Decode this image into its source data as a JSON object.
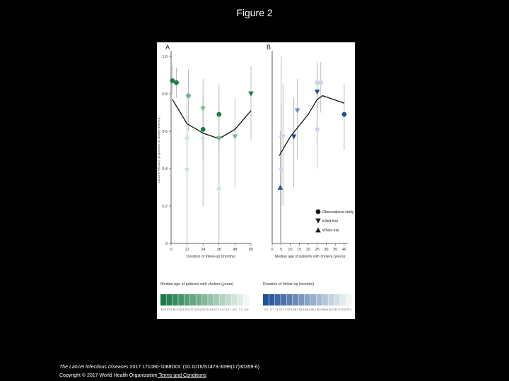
{
  "page_title": "Figure 2",
  "footer": {
    "journal": "The Lancet Infectious Diseases",
    "citation_rest": " 2017 171080-1088DOI: (10.1016/S1473-3099(17)30359-6)",
    "copyright": "Copyright © 2017 World Health Organization",
    "terms_link": " Terms and Conditions"
  },
  "colors": {
    "green_dark": "#1a7a45",
    "green_mid": "#6fb88a",
    "green_light": "#c6e6cf",
    "blue_dark": "#1f4f94",
    "blue_mid": "#6f8ec6",
    "blue_light": "#c9d5ea",
    "errorbar": "#b5b5b5",
    "trend": "#111111"
  },
  "chart_data": [
    {
      "type": "scatter",
      "panel_label": "A",
      "xlabel": "Duration of follow-up (months)",
      "ylabel": "Vaccine efficacy (proportion of deaths averted)",
      "xlim": [
        0,
        60
      ],
      "ylim": [
        0,
        1.0
      ],
      "xticks": [
        0,
        12,
        24,
        36,
        48,
        60
      ],
      "yticks": [
        0,
        0.2,
        0.4,
        0.6,
        0.8,
        1.0
      ],
      "ytick_labels": [
        "0",
        "0.2",
        "0.4",
        "0.6",
        "0.8",
        "1.0"
      ],
      "grid": false,
      "trend": {
        "x": [
          1,
          12,
          24,
          36,
          48,
          60
        ],
        "y": [
          0.77,
          0.64,
          0.59,
          0.56,
          0.61,
          0.71
        ]
      },
      "points": [
        {
          "x": 1,
          "y": 0.87,
          "shape": "circle",
          "shade": "dark",
          "lo": 0.8,
          "hi": 0.95
        },
        {
          "x": 4,
          "y": 0.86,
          "shape": "circle",
          "shade": "dark",
          "lo": 0.78,
          "hi": 0.94
        },
        {
          "x": 12,
          "y": 0.57,
          "shape": "tri-up",
          "shade": "light",
          "lo": 0.3,
          "hi": 0.8
        },
        {
          "x": 12,
          "y": 0.39,
          "shape": "tri-down",
          "shade": "light",
          "lo": 0.0,
          "hi": 0.7
        },
        {
          "x": 13,
          "y": 0.79,
          "shape": "circle",
          "shade": "mid",
          "lo": 0.6,
          "hi": 0.93
        },
        {
          "x": 24,
          "y": 0.72,
          "shape": "tri-down",
          "shade": "mid",
          "lo": 0.45,
          "hi": 0.88
        },
        {
          "x": 24,
          "y": 0.61,
          "shape": "circle",
          "shade": "dark",
          "lo": 0.45,
          "hi": 0.78
        },
        {
          "x": 24,
          "y": 0.57,
          "shape": "tri-up",
          "shade": "light",
          "lo": 0.2,
          "hi": 0.8
        },
        {
          "x": 36,
          "y": 0.69,
          "shape": "circle",
          "shade": "dark",
          "lo": 0.5,
          "hi": 0.85
        },
        {
          "x": 36,
          "y": 0.56,
          "shape": "tri-down",
          "shade": "mid",
          "lo": 0.3,
          "hi": 0.75
        },
        {
          "x": 36,
          "y": 0.3,
          "shape": "tri-up",
          "shade": "light",
          "lo": 0.0,
          "hi": 0.6
        },
        {
          "x": 48,
          "y": 0.57,
          "shape": "tri-down",
          "shade": "mid",
          "lo": 0.3,
          "hi": 0.78
        },
        {
          "x": 60,
          "y": 0.8,
          "shape": "tri-down",
          "shade": "dark",
          "lo": 0.55,
          "hi": 0.95
        }
      ],
      "colorbar": {
        "title": "Median age of patients with cholera (years)",
        "labels": [
          "40.0",
          "37.5",
          "34.9",
          "32.4",
          "29.9",
          "27.3",
          "24.8",
          "22.3",
          "19.8",
          "17.2",
          "14.7",
          "12.1",
          "9.6",
          "7.1",
          "4.6"
        ]
      }
    },
    {
      "type": "scatter",
      "panel_label": "B",
      "xlabel": "Median age of patients with cholera (years)",
      "xlim": [
        0,
        42
      ],
      "xticks": [
        0,
        5,
        10,
        15,
        20,
        25,
        30,
        35,
        40
      ],
      "ylim": [
        0,
        1.0
      ],
      "grid": false,
      "trend": {
        "x": [
          4,
          10,
          20,
          25,
          28,
          40
        ],
        "y": [
          0.47,
          0.57,
          0.69,
          0.77,
          0.79,
          0.75
        ]
      },
      "points": [
        {
          "x": 5,
          "y": 0.58,
          "shape": "tri-up",
          "shade": "light",
          "lo": 0.2,
          "hi": 1.0
        },
        {
          "x": 5,
          "y": 0.39,
          "shape": "tri-down",
          "shade": "light",
          "lo": 0.0,
          "hi": 0.75
        },
        {
          "x": 4.5,
          "y": 0.3,
          "shape": "tri-up",
          "shade": "dark",
          "lo": 0.0,
          "hi": 0.6
        },
        {
          "x": 6,
          "y": 0.57,
          "shape": "tri-down",
          "shade": "light",
          "lo": 0.2,
          "hi": 0.85
        },
        {
          "x": 12,
          "y": 0.57,
          "shape": "tri-down",
          "shade": "dark",
          "lo": 0.3,
          "hi": 0.78
        },
        {
          "x": 14,
          "y": 0.71,
          "shape": "tri-down",
          "shade": "mid",
          "lo": 0.45,
          "hi": 0.88
        },
        {
          "x": 25,
          "y": 0.81,
          "shape": "tri-down",
          "shade": "dark",
          "lo": 0.55,
          "hi": 0.95
        },
        {
          "x": 25,
          "y": 0.61,
          "shape": "circle",
          "shade": "light",
          "lo": 0.4,
          "hi": 0.8
        },
        {
          "x": 27,
          "y": 0.86,
          "shape": "circle",
          "shade": "light",
          "lo": 0.7,
          "hi": 0.97
        },
        {
          "x": 25,
          "y": 0.86,
          "shape": "circle",
          "shade": "light",
          "lo": 0.7,
          "hi": 0.97
        },
        {
          "x": 40,
          "y": 0.69,
          "shape": "circle",
          "shade": "dark",
          "lo": 0.5,
          "hi": 0.85
        }
      ],
      "legend": {
        "placement": "lower-right",
        "entries": [
          {
            "label": "Observational study",
            "shape": "circle"
          },
          {
            "label": "Killed trial",
            "shape": "tri-down"
          },
          {
            "label": "Whole trial",
            "shape": "tri-up"
          }
        ]
      },
      "colorbar": {
        "title": "Duration of follow-up (months)",
        "labels": [
          "0.0",
          "5.7",
          "11.3",
          "17.0",
          "22.6",
          "28.3",
          "33.9",
          "39.6",
          "45.2",
          "50.9",
          "56.6",
          "62.2",
          "67.9",
          "73.5",
          "79.2"
        ]
      }
    }
  ]
}
